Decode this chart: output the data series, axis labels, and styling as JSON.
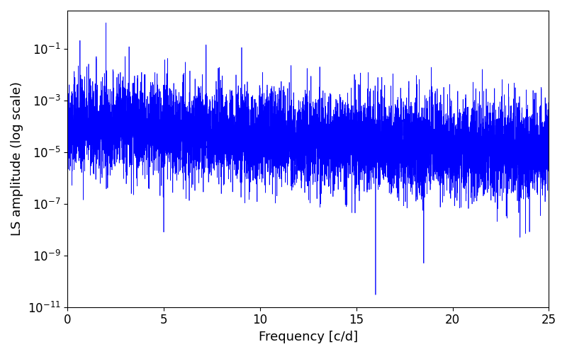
{
  "xlabel": "Frequency [c/d]",
  "ylabel": "LS amplitude (log scale)",
  "xlim": [
    0,
    25
  ],
  "ylim": [
    1e-11,
    3
  ],
  "line_color": "#0000FF",
  "line_width": 0.5,
  "background_color": "#ffffff",
  "seed": 42,
  "n_points": 8000,
  "freq_max": 25.0,
  "tick_labelsize": 12,
  "axis_labelsize": 13
}
